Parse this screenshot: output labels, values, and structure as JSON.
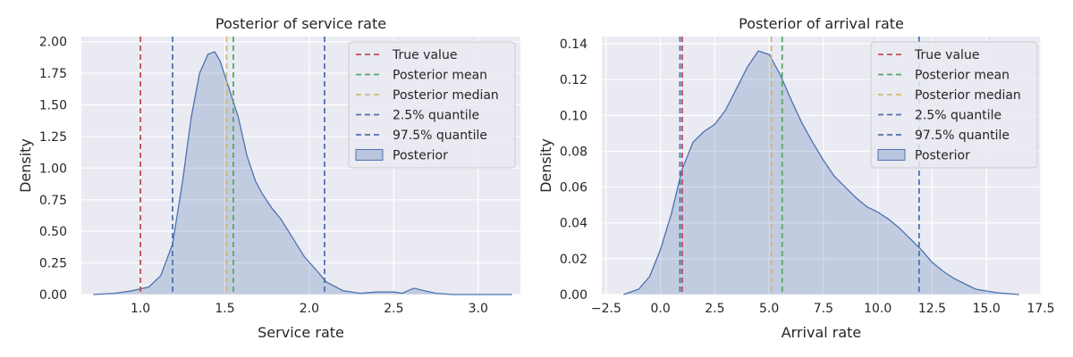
{
  "chart_data": [
    {
      "type": "area",
      "title": "Posterior of service rate",
      "xlabel": "Service rate",
      "ylabel": "Density",
      "xlim": [
        0.65,
        3.25
      ],
      "ylim": [
        0,
        2.04
      ],
      "xticks": [
        "1.0",
        "1.5",
        "2.0",
        "2.5",
        "3.0"
      ],
      "yticks": [
        "0.00",
        "0.25",
        "0.50",
        "0.75",
        "1.00",
        "1.25",
        "1.50",
        "1.75",
        "2.00"
      ],
      "grid": true,
      "legend_position": "top-right",
      "legend": [
        "True value",
        "Posterior mean",
        "Posterior median",
        "2.5% quantile",
        "97.5% quantile",
        "Posterior"
      ],
      "vlines": [
        {
          "name": "True value",
          "x": 1.0,
          "color": "#c44e52"
        },
        {
          "name": "Posterior mean",
          "x": 1.55,
          "color": "#55a868"
        },
        {
          "name": "Posterior median",
          "x": 1.51,
          "color": "#ccb974"
        },
        {
          "name": "2.5% quantile",
          "x": 1.19,
          "color": "#4c72b0"
        },
        {
          "name": "97.5% quantile",
          "x": 2.09,
          "color": "#4c72b0"
        }
      ],
      "series": [
        {
          "name": "Posterior",
          "x": [
            0.72,
            0.85,
            0.95,
            1.05,
            1.12,
            1.19,
            1.25,
            1.3,
            1.35,
            1.4,
            1.44,
            1.47,
            1.52,
            1.58,
            1.63,
            1.68,
            1.72,
            1.78,
            1.83,
            1.9,
            1.97,
            2.05,
            2.1,
            2.2,
            2.3,
            2.4,
            2.5,
            2.55,
            2.62,
            2.68,
            2.75,
            2.85,
            3.2
          ],
          "y": [
            0.0,
            0.01,
            0.03,
            0.06,
            0.15,
            0.4,
            0.9,
            1.4,
            1.75,
            1.9,
            1.92,
            1.85,
            1.65,
            1.4,
            1.1,
            0.9,
            0.8,
            0.68,
            0.6,
            0.45,
            0.3,
            0.18,
            0.1,
            0.03,
            0.01,
            0.02,
            0.02,
            0.01,
            0.05,
            0.03,
            0.01,
            0.0,
            0.0
          ]
        }
      ],
      "colors": {
        "fill": "#4c72b0",
        "line": "#4c72b0"
      }
    },
    {
      "type": "area",
      "title": "Posterior of arrival rate",
      "xlabel": "Arrival rate",
      "ylabel": "Density",
      "xlim": [
        -2.7,
        17.5
      ],
      "ylim": [
        0,
        0.144
      ],
      "xticks": [
        "−2.5",
        "0.0",
        "2.5",
        "5.0",
        "7.5",
        "10.0",
        "12.5",
        "15.0",
        "17.5"
      ],
      "yticks": [
        "0.00",
        "0.02",
        "0.04",
        "0.06",
        "0.08",
        "0.10",
        "0.12",
        "0.14"
      ],
      "grid": true,
      "legend_position": "top-right",
      "legend": [
        "True value",
        "Posterior mean",
        "Posterior median",
        "2.5% quantile",
        "97.5% quantile",
        "Posterior"
      ],
      "vlines": [
        {
          "name": "True value",
          "x": 1.0,
          "color": "#c44e52"
        },
        {
          "name": "Posterior mean",
          "x": 5.6,
          "color": "#55a868"
        },
        {
          "name": "Posterior median",
          "x": 5.1,
          "color": "#ccb974"
        },
        {
          "name": "2.5% quantile",
          "x": 0.9,
          "color": "#4c72b0"
        },
        {
          "name": "97.5% quantile",
          "x": 11.9,
          "color": "#4c72b0"
        }
      ],
      "series": [
        {
          "name": "Posterior",
          "x": [
            -1.7,
            -1.0,
            -0.5,
            0.0,
            0.5,
            1.0,
            1.5,
            2.0,
            2.5,
            3.0,
            3.5,
            4.0,
            4.5,
            5.0,
            5.5,
            6.0,
            6.5,
            7.0,
            7.5,
            8.0,
            8.5,
            9.0,
            9.5,
            10.0,
            10.5,
            11.0,
            11.5,
            12.0,
            12.5,
            13.0,
            13.5,
            14.0,
            14.5,
            15.0,
            15.5,
            16.0,
            16.5
          ],
          "y": [
            0.0,
            0.003,
            0.01,
            0.025,
            0.045,
            0.07,
            0.085,
            0.091,
            0.095,
            0.103,
            0.115,
            0.127,
            0.136,
            0.134,
            0.123,
            0.109,
            0.096,
            0.085,
            0.075,
            0.066,
            0.06,
            0.054,
            0.049,
            0.046,
            0.042,
            0.037,
            0.031,
            0.025,
            0.018,
            0.013,
            0.009,
            0.006,
            0.003,
            0.002,
            0.001,
            0.0005,
            0.0
          ]
        }
      ],
      "colors": {
        "fill": "#4c72b0",
        "line": "#4c72b0"
      }
    }
  ]
}
